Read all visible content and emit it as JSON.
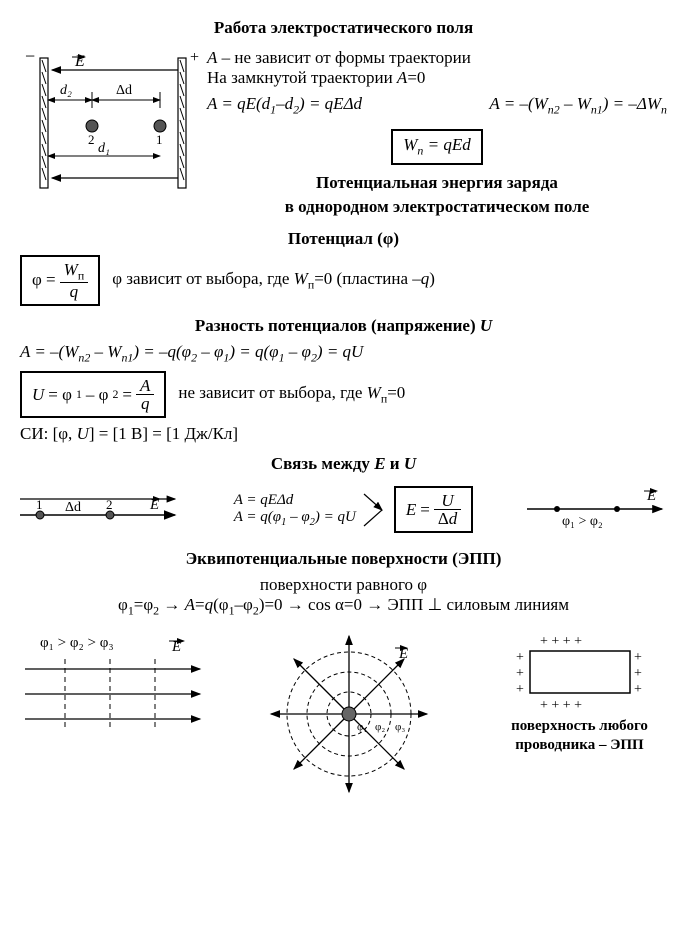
{
  "sections": {
    "work": {
      "title": "Работа электростатического поля",
      "line1_html": "<span class='italic'>A</span> – не зависит от формы траектории",
      "line2_html": "На замкнутой траектории <span class='italic'>A</span>=0",
      "eq_left_html": "<span class='italic'>A</span> = <span class='italic'>qE</span>(<span class='italic'>d</span><sub>1</sub>–<span class='italic'>d</span><sub>2</sub>) = <span class='italic'>qE</span>Δ<span class='italic'>d</span>",
      "eq_right_html": "<span class='italic'>A</span> = –(<span class='italic'>W</span><sub>п2</sub> – <span class='italic'>W</span><sub>п1</sub>) = –Δ<span class='italic'>W</span><sub>п</sub>",
      "box_html": "<span class='italic'>W</span><sub>п</sub> = <span class='italic'>qEd</span>",
      "subtitle1": "Потенциальная энергия заряда",
      "subtitle2": "в однородном электростатическом поле",
      "diagram": {
        "E": "E",
        "d1": "d₁",
        "d2": "d₂",
        "dd": "Δd",
        "plus": "+",
        "minus": "−",
        "p1": "1",
        "p2": "2",
        "plate_color": "#000",
        "arrow_color": "#000",
        "charge_r": 5
      }
    },
    "potential": {
      "title_html": "Потенциал (φ)",
      "box_html": "φ = <span class='frac'><span class='num'><span class='italic'>W</span><sub>п</sub></span><span class='den italic'>q</span></span>",
      "text_html": "φ зависит от выбора, где <span class='italic'>W</span><sub>п</sub>=0 (пластина –<span class='italic'>q</span>)"
    },
    "voltage": {
      "title_html": "Разность потенциалов (напряжение) <span class='italic'>U</span>",
      "eq1_html": "<span class='italic'>A</span> = –(<span class='italic'>W</span><sub>п2</sub> – <span class='italic'>W</span><sub>п1</sub>) = –<span class='italic'>q</span>(φ<sub>2</sub> – φ<sub>1</sub>) = <span class='italic'>q</span>(φ<sub>1</sub> – φ<sub>2</sub>) = <span class='italic'>qU</span>",
      "box_html": "<span class='italic'>U</span> = φ<sub>1</sub> – φ<sub>2</sub> = <span class='frac'><span class='num italic'>A</span><span class='den italic'>q</span></span>",
      "text_html": "не зависит от выбора, где <span class='italic'>W</span><sub>п</sub>=0",
      "si_html": "СИ: [φ, <span class='italic'>U</span>] = [1 В] = [1 Дж/Кл]"
    },
    "relation": {
      "title_html": "Связь между <span class='italic'>E</span> и <span class='italic'>U</span>",
      "eqA1_html": "<span class='italic'>A</span> = <span class='italic'>qE</span>Δ<span class='italic'>d</span>",
      "eqA2_html": "<span class='italic'>A</span> = <span class='italic'>q</span>(φ<sub>1</sub> – φ<sub>2</sub>) = <span class='italic'>qU</span>",
      "box_html": "<span class='italic'>E</span> = <span class='frac'><span class='num italic'>U</span><span class='den'>Δ<span class='italic'>d</span></span></span>",
      "diagram_left": {
        "p1": "1",
        "p2": "2",
        "dd": "Δd",
        "E": "E"
      },
      "diagram_right": {
        "phi_rel": "φ₁ > φ₂",
        "E": "E"
      }
    },
    "equipotential": {
      "title_html": "Эквипотенциальные поверхности (ЭПП)",
      "line1_html": "поверхности равного φ",
      "line2_html": "φ<sub>1</sub>=φ<sub>2</sub> → <span class='italic'>A</span>=<span class='italic'>q</span>(φ<sub>1</sub>–φ<sub>2</sub>)=0 → cos α=0 → ЭПП ⊥ силовым линиям",
      "diagram_uniform": {
        "rel": "φ₁ > φ₂ > φ₃",
        "E": "E"
      },
      "diagram_radial": {
        "E": "E",
        "phi1": "φ₁",
        "phi2": "φ₂",
        "phi3": "φ₃"
      },
      "diagram_conductor": {
        "caption1": "поверхность любого",
        "caption2": "проводника – ЭПП"
      }
    }
  },
  "style": {
    "font_family": "Times New Roman",
    "text_color": "#000000",
    "background": "#ffffff",
    "box_border": "#000000",
    "arrow_color": "#000000",
    "dash_color": "#000000",
    "title_fontsize": 18,
    "body_fontsize": 17
  }
}
